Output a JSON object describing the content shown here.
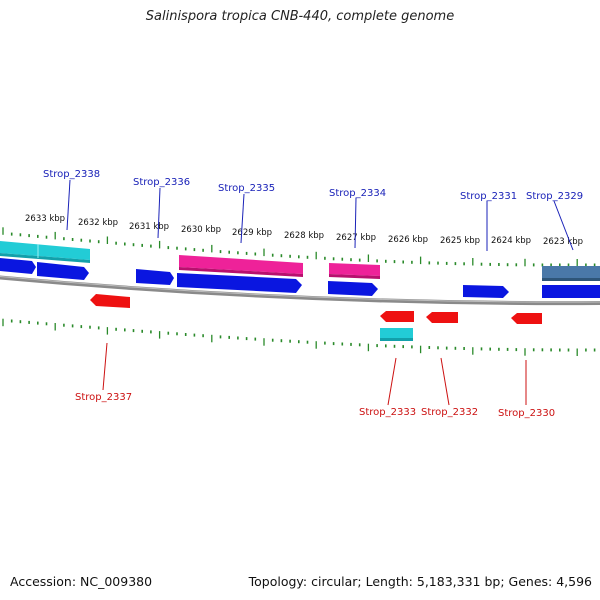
{
  "title": "Salinispora tropica CNB-440, complete genome",
  "footer": {
    "accession": "Accession: NC_009380",
    "summary": "Topology: circular; Length: 5,183,331 bp; Genes: 4,596"
  },
  "colors": {
    "forward_cds": "#0a16e0",
    "reverse_cds": "#ee1111",
    "pink": "#ee2299",
    "cyan": "#22ccd6",
    "steel": "#4a78a8",
    "ticks": "#2a8a2a",
    "backbone": "#888888",
    "forward_label": "#1a22b8",
    "reverse_label": "#cc1111"
  },
  "position_labels": [
    "2633 kbp",
    "2632 kbp",
    "2631 kbp",
    "2630 kbp",
    "2629 kbp",
    "2628 kbp",
    "2627 kbp",
    "2626 kbp",
    "2625 kbp",
    "2624 kbp",
    "2623 kbp"
  ],
  "forward_labels": [
    "Strop_2338",
    "Strop_2336",
    "Strop_2335",
    "Strop_2334",
    "Strop_2331",
    "Strop_2329"
  ],
  "reverse_labels": [
    "Strop_2337",
    "Strop_2333",
    "Strop_2332",
    "Strop_2330"
  ]
}
